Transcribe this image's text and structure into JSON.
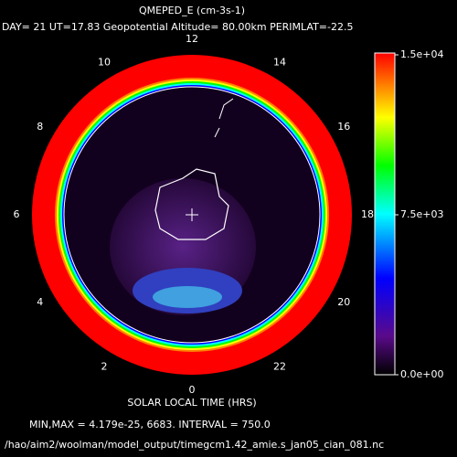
{
  "chart_data": {
    "type": "polar-contour",
    "title": "QMEPED_E (cm-3s-1)",
    "subtitle": "DAY= 21 UT=17.83 Geopotential Altitude= 80.00km PERIMLAT=-22.5",
    "hour_ticks": [
      12,
      14,
      16,
      18,
      20,
      22,
      0,
      2,
      4,
      6,
      8,
      10
    ],
    "xlabel": "SOLAR LOCAL TIME (HRS)",
    "clim": [
      0,
      15000
    ],
    "cticks": [
      {
        "value": 0,
        "label": "0.0e+00"
      },
      {
        "value": 7500,
        "label": "7.5e+03"
      },
      {
        "value": 15000,
        "label": "1.5e+04"
      }
    ],
    "stats": "MIN,MAX =  4.179e-25,     6683. INTERVAL =       750.0",
    "file": "/hao/aim2/woolman/model_output/timegcm1.42_amie.s_jan05_cian_081.nc"
  }
}
